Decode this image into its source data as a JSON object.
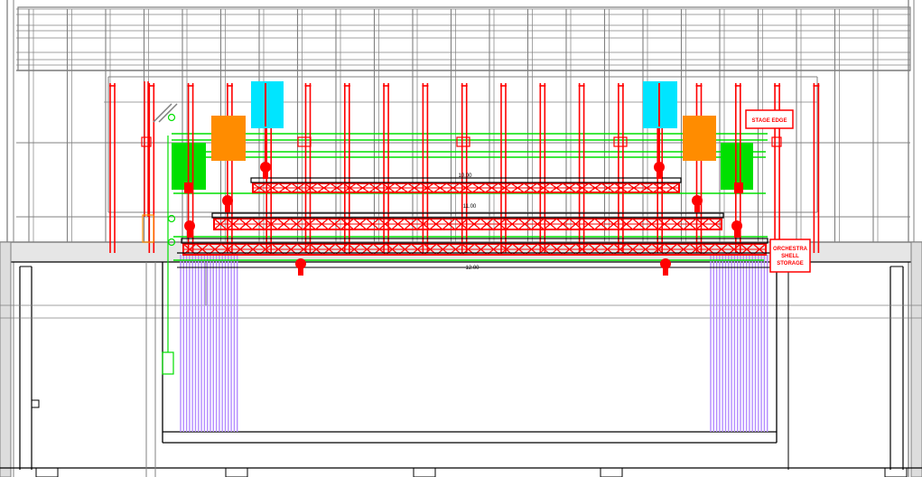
{
  "drawing": {
    "labels": {
      "stage_box": "STAGE EDGE",
      "side_box_lines": [
        "ORCHESTRA",
        "SHELL",
        "STORAGE"
      ]
    },
    "dimensions": [
      "10.00",
      "11.00",
      "12.00"
    ]
  },
  "colors": {
    "structure": "#808080",
    "truss": "#ff0000",
    "batten": "#00e000",
    "lamp": "#00e5ff",
    "fixture": "#ff8c00",
    "drape": "#b48cff",
    "outline": "#000000"
  },
  "icons": [
    "rigging-grid",
    "truss-hoist",
    "drape-panel"
  ]
}
